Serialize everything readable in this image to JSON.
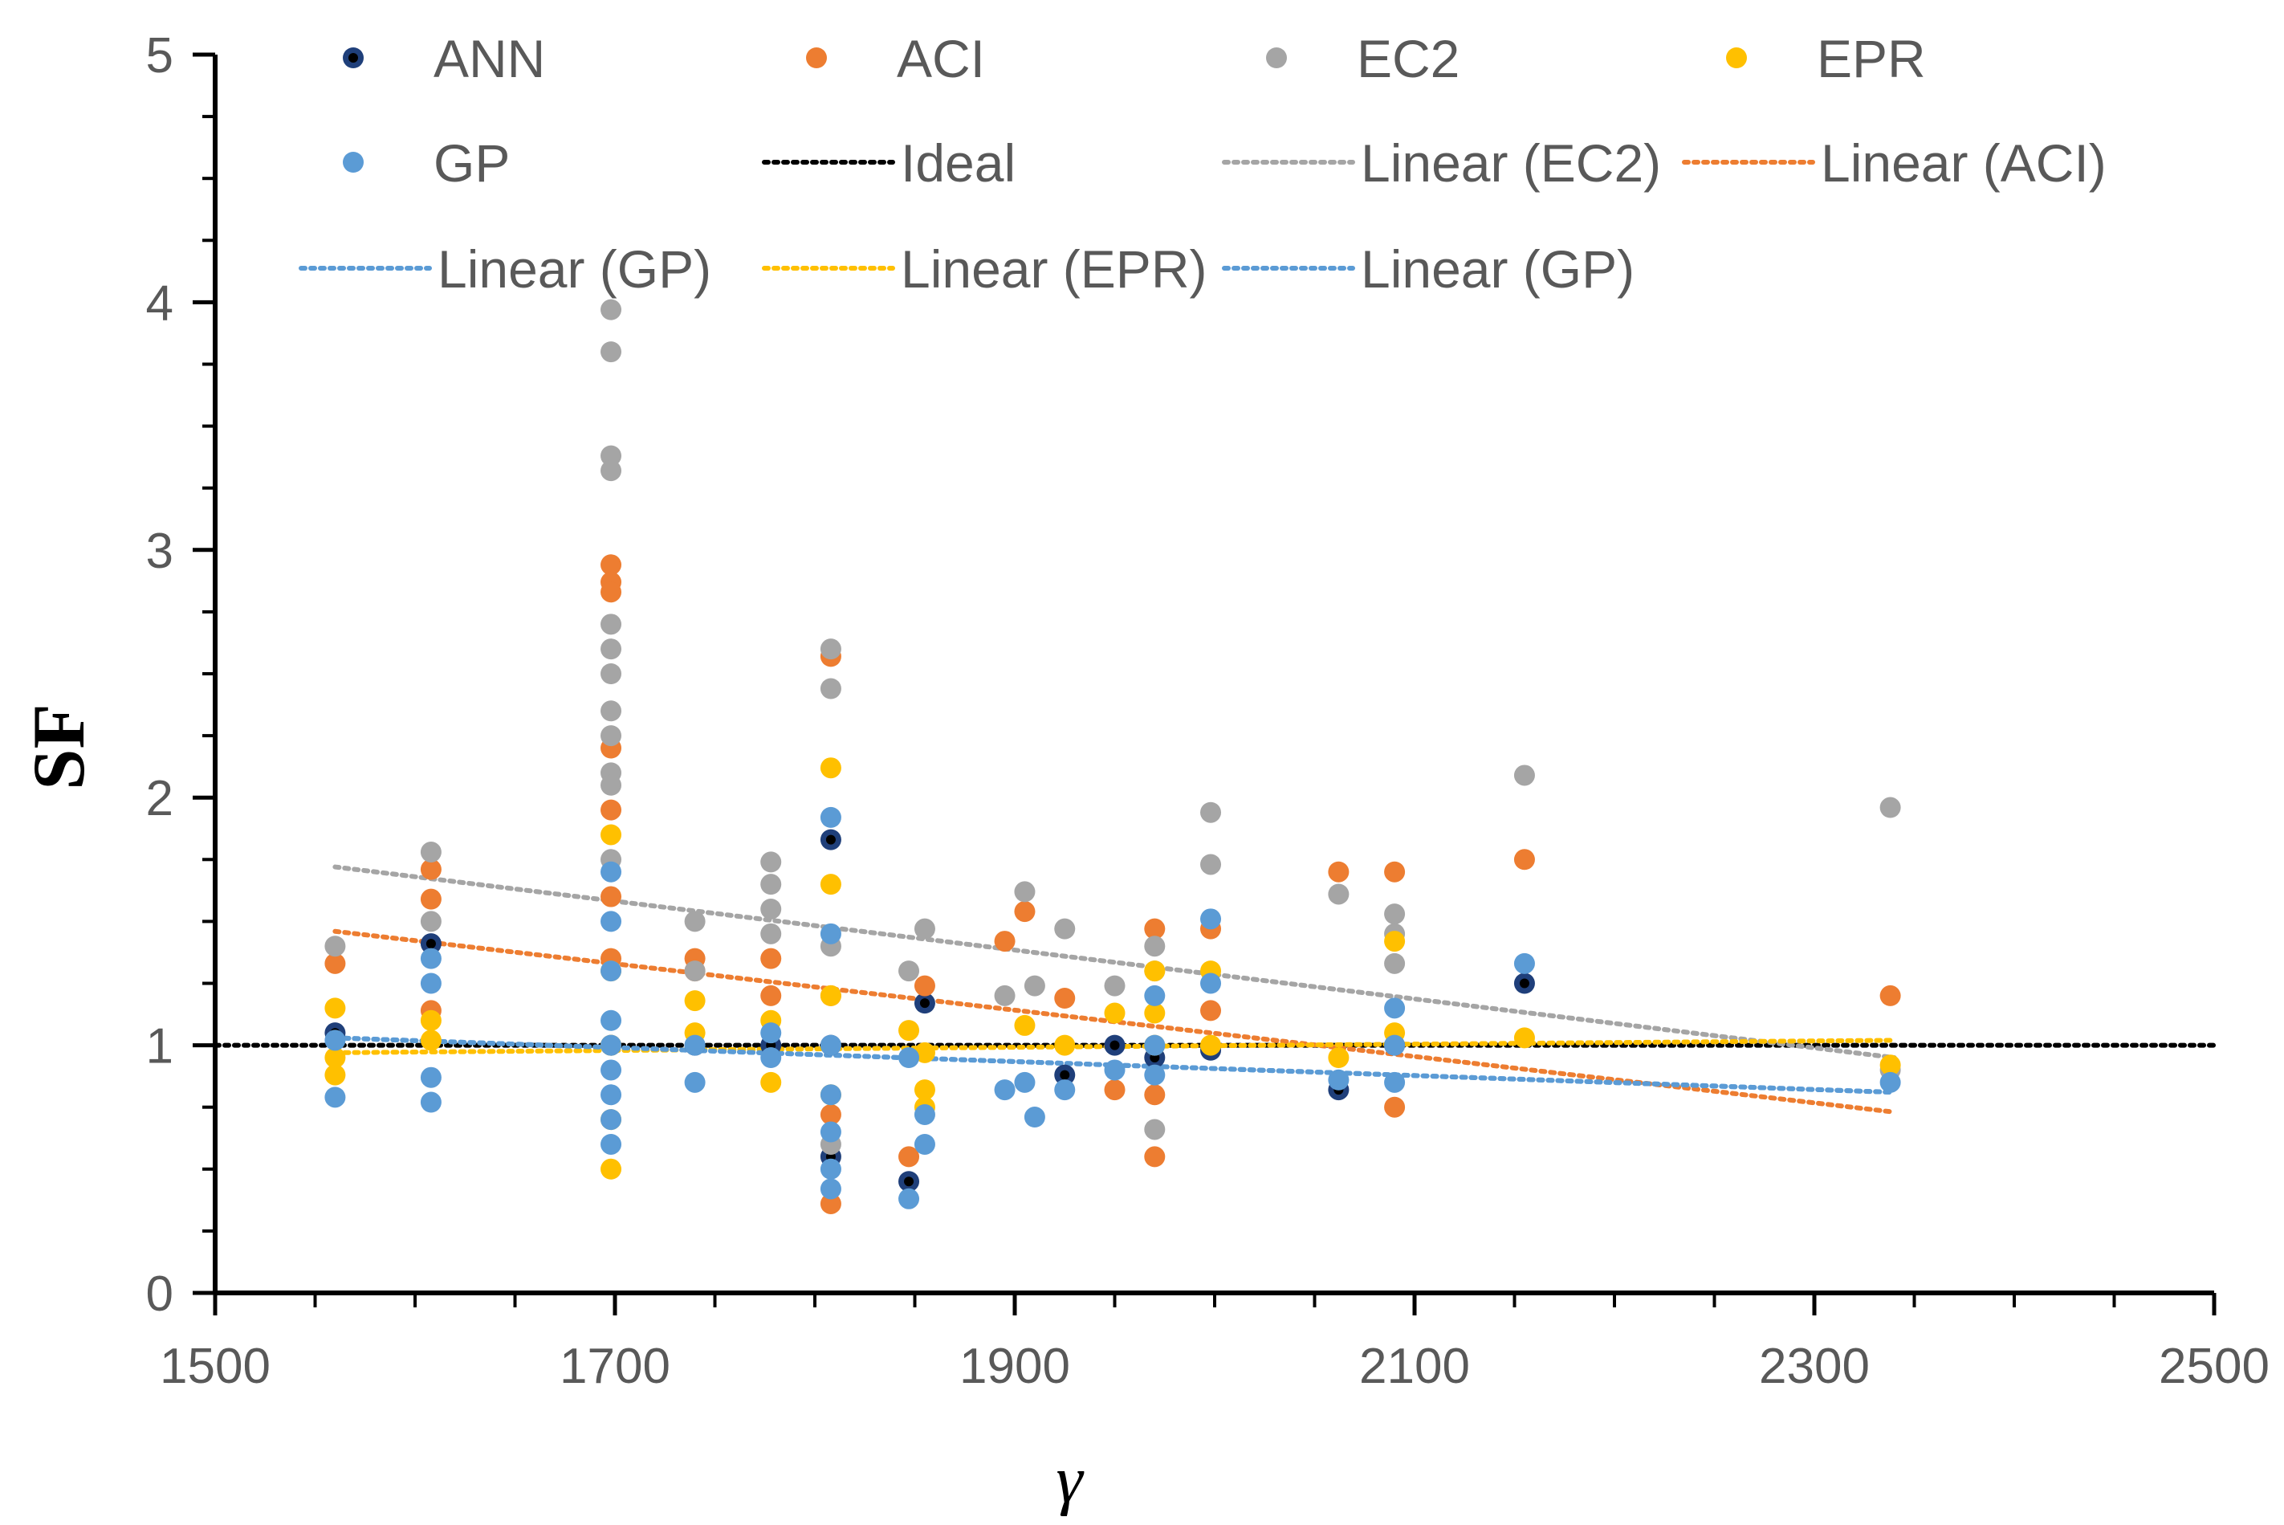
{
  "chart_data": {
    "type": "scatter",
    "title": "",
    "xlabel": "γ",
    "ylabel": "SF",
    "xlim": [
      1500,
      2500
    ],
    "ylim": [
      0,
      5
    ],
    "x_ticks": [
      1500,
      1700,
      1900,
      2100,
      2300,
      2500
    ],
    "y_ticks": [
      0,
      1,
      2,
      3,
      4,
      5
    ],
    "x_tick_labels": [
      "1500",
      "1700",
      "1900",
      "2100",
      "2300",
      "2500"
    ],
    "y_tick_labels": [
      "0",
      "1",
      "2",
      "3",
      "4",
      "5"
    ],
    "grid": false,
    "legend_position": "top",
    "series": [
      {
        "name": "ANN",
        "kind": "points",
        "color": "#000000",
        "halo": "#1f3f7a",
        "points": [
          [
            1560,
            1.05
          ],
          [
            1608,
            1.41
          ],
          [
            1698,
            1.0
          ],
          [
            1740,
            1.0
          ],
          [
            1778,
            1.0
          ],
          [
            1808,
            1.83
          ],
          [
            1808,
            1.0
          ],
          [
            1808,
            0.55
          ],
          [
            1847,
            0.45
          ],
          [
            1855,
            1.17
          ],
          [
            1925,
            0.88
          ],
          [
            1950,
            1.0
          ],
          [
            1970,
            0.95
          ],
          [
            1998,
            0.98
          ],
          [
            2062,
            0.82
          ],
          [
            2090,
            1.0
          ],
          [
            2155,
            1.25
          ]
        ]
      },
      {
        "name": "ACI",
        "kind": "points",
        "color": "#ED7D31",
        "points": [
          [
            1560,
            1.33
          ],
          [
            1608,
            1.71
          ],
          [
            1608,
            1.59
          ],
          [
            1608,
            1.14
          ],
          [
            1698,
            2.94
          ],
          [
            1698,
            2.87
          ],
          [
            1698,
            2.83
          ],
          [
            1698,
            2.2
          ],
          [
            1698,
            1.95
          ],
          [
            1698,
            1.6
          ],
          [
            1698,
            1.35
          ],
          [
            1740,
            1.35
          ],
          [
            1740,
            1.3
          ],
          [
            1778,
            1.35
          ],
          [
            1778,
            1.2
          ],
          [
            1808,
            2.57
          ],
          [
            1808,
            1.2
          ],
          [
            1808,
            0.72
          ],
          [
            1808,
            0.36
          ],
          [
            1847,
            0.55
          ],
          [
            1855,
            1.24
          ],
          [
            1895,
            1.42
          ],
          [
            1905,
            1.54
          ],
          [
            1925,
            1.19
          ],
          [
            1950,
            0.82
          ],
          [
            1970,
            1.47
          ],
          [
            1970,
            0.8
          ],
          [
            1970,
            0.55
          ],
          [
            1998,
            1.47
          ],
          [
            1998,
            1.14
          ],
          [
            2062,
            1.7
          ],
          [
            2090,
            1.7
          ],
          [
            2090,
            0.75
          ],
          [
            2155,
            1.75
          ],
          [
            2338,
            1.2
          ]
        ]
      },
      {
        "name": "EC2",
        "kind": "points",
        "color": "#A5A5A5",
        "points": [
          [
            1560,
            1.4
          ],
          [
            1608,
            1.78
          ],
          [
            1608,
            1.5
          ],
          [
            1698,
            3.97
          ],
          [
            1698,
            3.8
          ],
          [
            1698,
            3.38
          ],
          [
            1698,
            3.32
          ],
          [
            1698,
            2.7
          ],
          [
            1698,
            2.6
          ],
          [
            1698,
            2.5
          ],
          [
            1698,
            2.35
          ],
          [
            1698,
            2.25
          ],
          [
            1698,
            2.1
          ],
          [
            1698,
            2.05
          ],
          [
            1698,
            1.75
          ],
          [
            1740,
            1.5
          ],
          [
            1740,
            1.3
          ],
          [
            1778,
            1.74
          ],
          [
            1778,
            1.65
          ],
          [
            1778,
            1.55
          ],
          [
            1778,
            1.45
          ],
          [
            1808,
            2.6
          ],
          [
            1808,
            2.44
          ],
          [
            1808,
            1.4
          ],
          [
            1808,
            0.6
          ],
          [
            1847,
            1.3
          ],
          [
            1855,
            1.47
          ],
          [
            1895,
            1.2
          ],
          [
            1905,
            1.62
          ],
          [
            1910,
            1.24
          ],
          [
            1925,
            1.47
          ],
          [
            1950,
            1.24
          ],
          [
            1970,
            1.4
          ],
          [
            1970,
            1.3
          ],
          [
            1970,
            0.66
          ],
          [
            1998,
            1.94
          ],
          [
            1998,
            1.73
          ],
          [
            2062,
            1.61
          ],
          [
            2090,
            1.53
          ],
          [
            2090,
            1.45
          ],
          [
            2090,
            1.33
          ],
          [
            2155,
            2.09
          ],
          [
            2338,
            1.96
          ],
          [
            2338,
            0.9
          ]
        ]
      },
      {
        "name": "EPR",
        "kind": "points",
        "color": "#FFC000",
        "points": [
          [
            1560,
            1.15
          ],
          [
            1560,
            0.95
          ],
          [
            1560,
            0.88
          ],
          [
            1608,
            1.1
          ],
          [
            1608,
            1.02
          ],
          [
            1698,
            1.85
          ],
          [
            1698,
            1.3
          ],
          [
            1698,
            1.0
          ],
          [
            1698,
            0.7
          ],
          [
            1698,
            0.5
          ],
          [
            1740,
            1.18
          ],
          [
            1740,
            1.05
          ],
          [
            1778,
            1.1
          ],
          [
            1778,
            0.85
          ],
          [
            1808,
            2.12
          ],
          [
            1808,
            1.65
          ],
          [
            1808,
            1.2
          ],
          [
            1808,
            0.8
          ],
          [
            1847,
            1.06
          ],
          [
            1855,
            0.97
          ],
          [
            1855,
            0.82
          ],
          [
            1855,
            0.75
          ],
          [
            1905,
            1.08
          ],
          [
            1925,
            1.0
          ],
          [
            1950,
            1.13
          ],
          [
            1970,
            1.3
          ],
          [
            1970,
            1.13
          ],
          [
            1970,
            1.0
          ],
          [
            1998,
            1.3
          ],
          [
            1998,
            1.0
          ],
          [
            2062,
            0.95
          ],
          [
            2090,
            1.42
          ],
          [
            2090,
            1.05
          ],
          [
            2155,
            1.03
          ],
          [
            2338,
            0.92
          ]
        ]
      },
      {
        "name": "GP",
        "kind": "points",
        "color": "#5B9BD5",
        "points": [
          [
            1560,
            1.02
          ],
          [
            1560,
            0.79
          ],
          [
            1608,
            1.35
          ],
          [
            1608,
            1.25
          ],
          [
            1608,
            0.87
          ],
          [
            1608,
            0.77
          ],
          [
            1698,
            1.7
          ],
          [
            1698,
            1.5
          ],
          [
            1698,
            1.3
          ],
          [
            1698,
            1.1
          ],
          [
            1698,
            1.0
          ],
          [
            1698,
            0.9
          ],
          [
            1698,
            0.8
          ],
          [
            1698,
            0.7
          ],
          [
            1698,
            0.6
          ],
          [
            1740,
            1.0
          ],
          [
            1740,
            0.85
          ],
          [
            1778,
            1.05
          ],
          [
            1778,
            0.95
          ],
          [
            1808,
            1.92
          ],
          [
            1808,
            1.45
          ],
          [
            1808,
            1.0
          ],
          [
            1808,
            0.8
          ],
          [
            1808,
            0.65
          ],
          [
            1808,
            0.5
          ],
          [
            1808,
            0.42
          ],
          [
            1847,
            0.95
          ],
          [
            1847,
            0.38
          ],
          [
            1855,
            0.72
          ],
          [
            1855,
            0.6
          ],
          [
            1895,
            0.82
          ],
          [
            1905,
            0.85
          ],
          [
            1910,
            0.71
          ],
          [
            1925,
            0.82
          ],
          [
            1950,
            0.9
          ],
          [
            1970,
            1.2
          ],
          [
            1970,
            1.0
          ],
          [
            1970,
            0.88
          ],
          [
            1998,
            1.51
          ],
          [
            1998,
            1.25
          ],
          [
            2062,
            0.86
          ],
          [
            2090,
            1.15
          ],
          [
            2090,
            1.0
          ],
          [
            2090,
            0.85
          ],
          [
            2155,
            1.33
          ],
          [
            2338,
            0.85
          ]
        ]
      },
      {
        "name": "Ideal",
        "kind": "line",
        "color": "#000000",
        "points": [
          [
            1500,
            1.0
          ],
          [
            2500,
            1.0
          ]
        ]
      },
      {
        "name": "Linear (EC2)",
        "kind": "line",
        "color": "#A5A5A5",
        "points": [
          [
            1560,
            1.72
          ],
          [
            2340,
            0.95
          ]
        ]
      },
      {
        "name": "Linear (ACI)",
        "kind": "line",
        "color": "#ED7D31",
        "points": [
          [
            1560,
            1.46
          ],
          [
            2340,
            0.73
          ]
        ]
      },
      {
        "name": "Linear (GP)",
        "kind": "line",
        "color": "#5B9BD5",
        "points": [
          [
            1560,
            1.03
          ],
          [
            2340,
            0.81
          ]
        ]
      },
      {
        "name": "Linear (EPR)",
        "kind": "line",
        "color": "#FFC000",
        "points": [
          [
            1560,
            0.97
          ],
          [
            2340,
            1.02
          ]
        ]
      },
      {
        "name": "Linear (GP)",
        "kind": "line",
        "color": "#5B9BD5",
        "points": [
          [
            1560,
            1.03
          ],
          [
            2340,
            0.81
          ]
        ]
      }
    ]
  }
}
